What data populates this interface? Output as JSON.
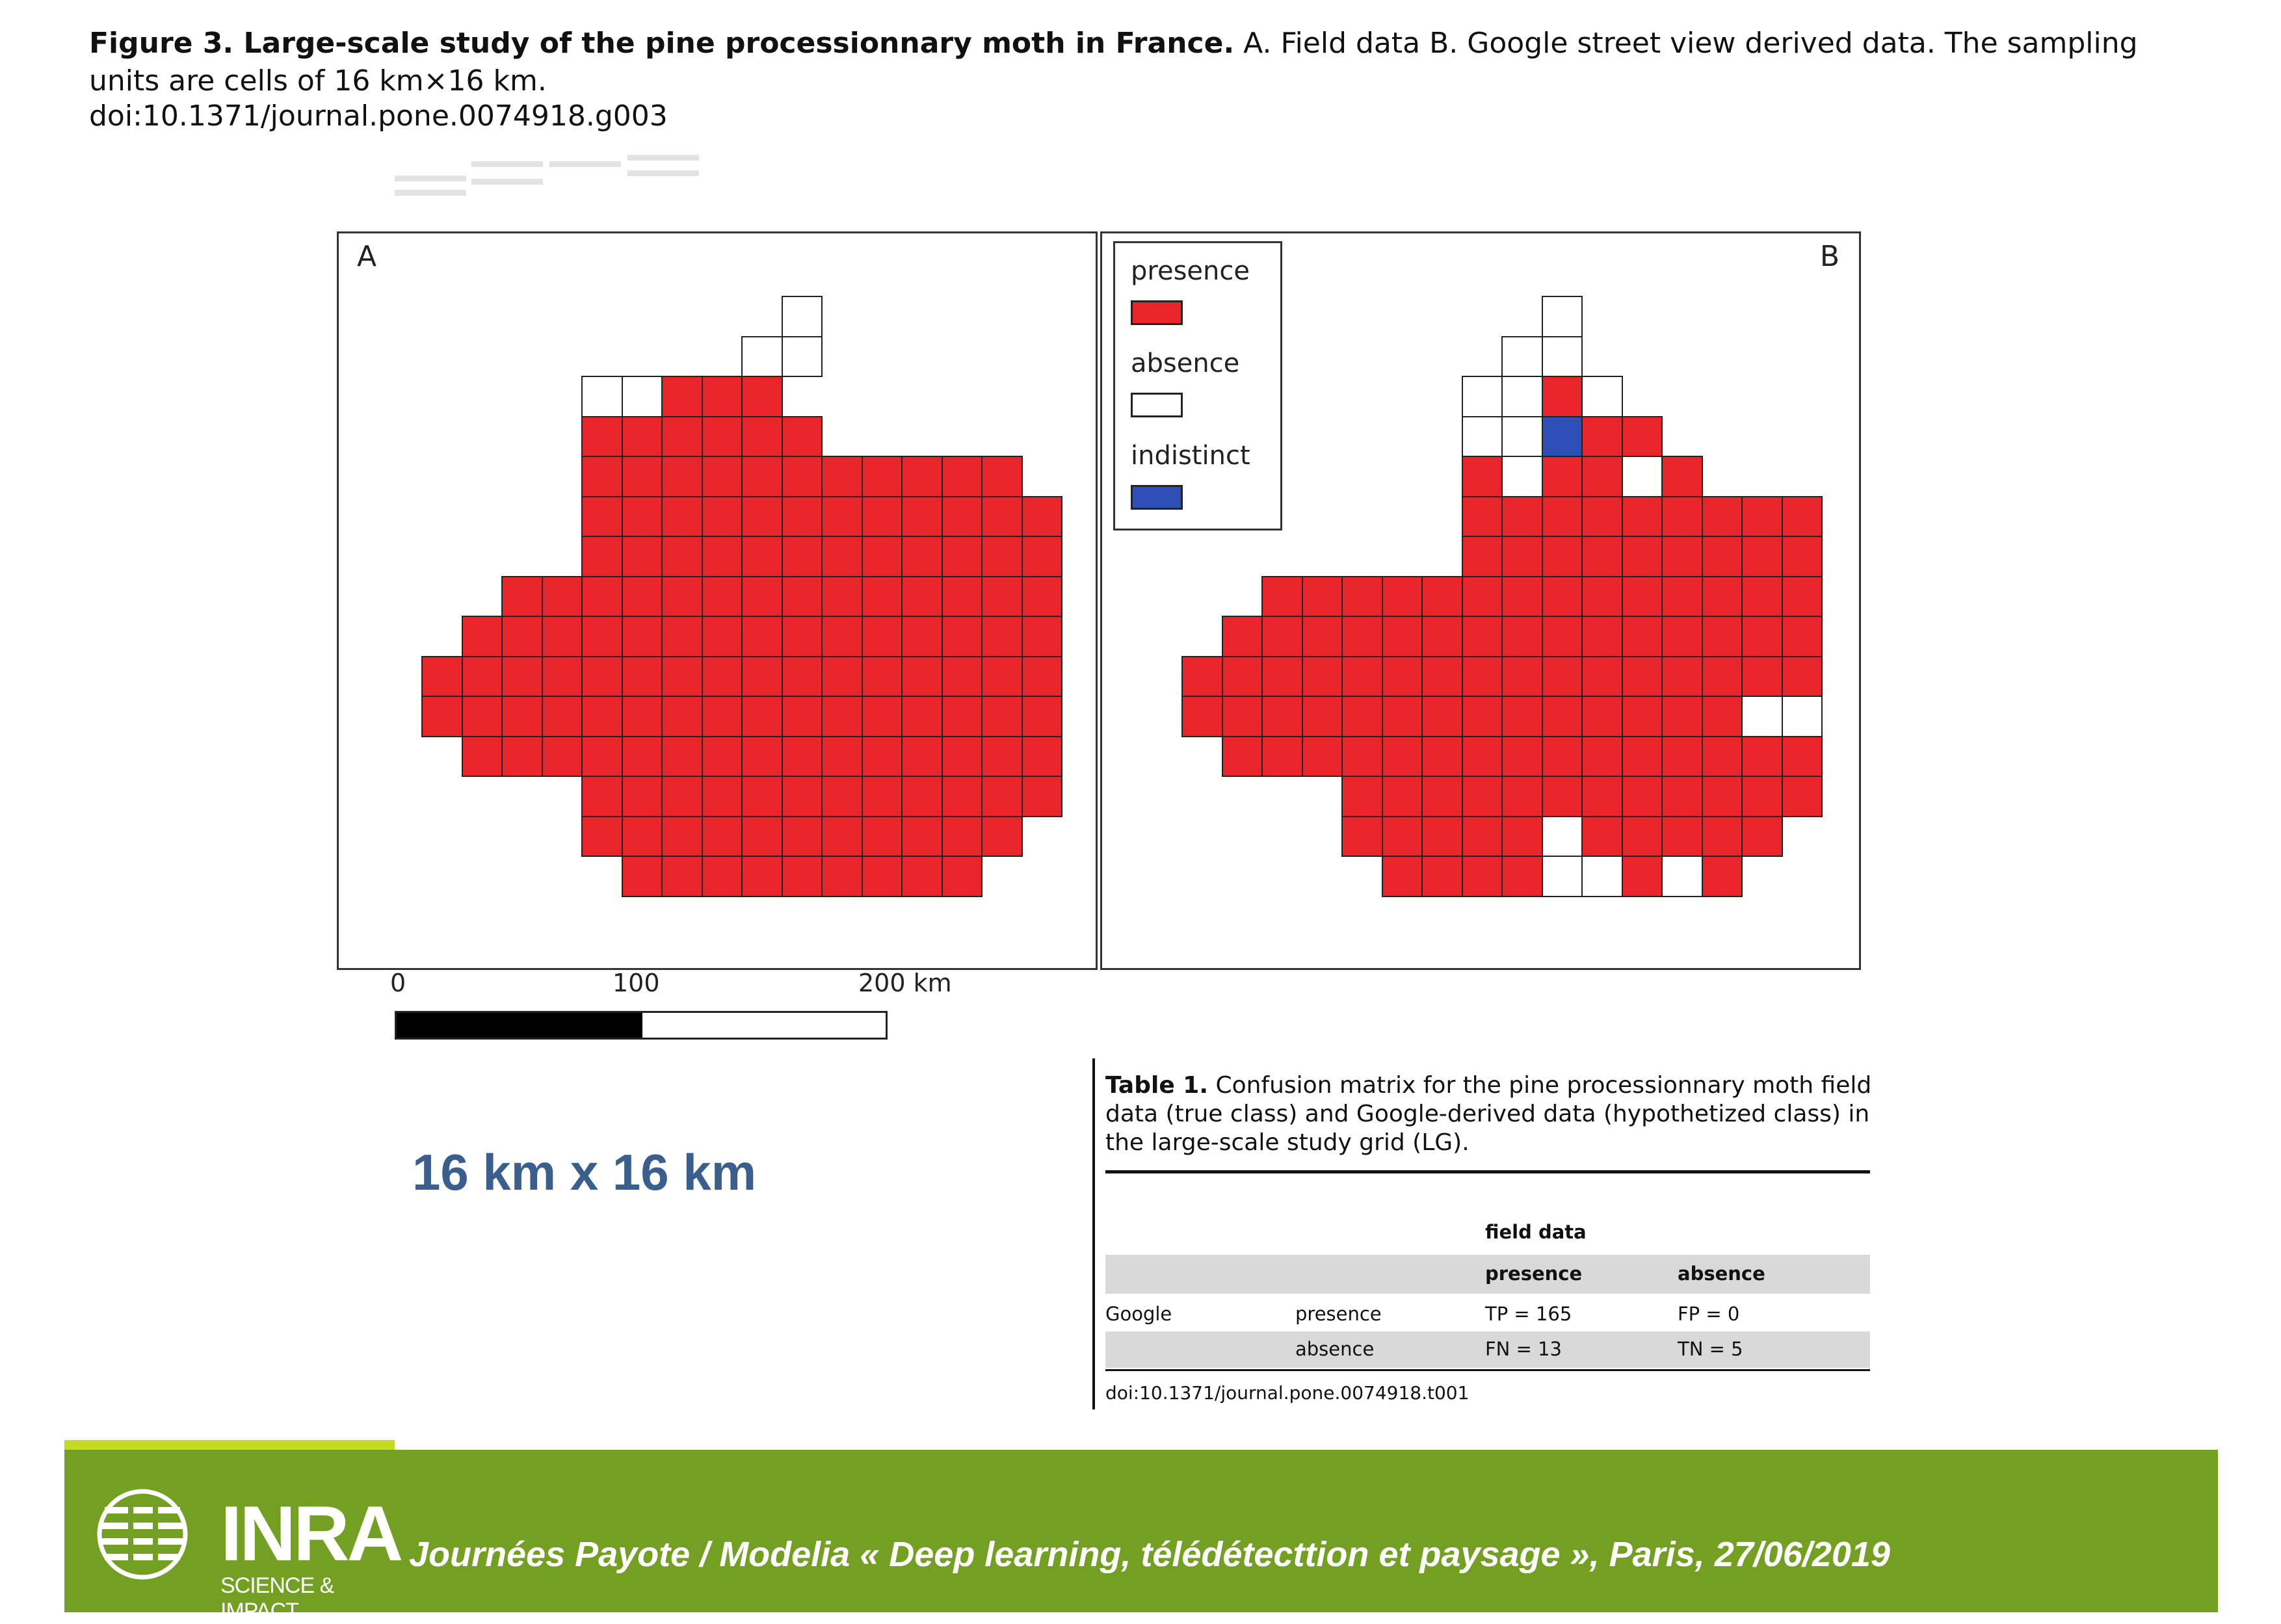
{
  "figure": {
    "caption_title": "Figure 3. Large-scale study of the pine processionnary moth in France.",
    "caption_rest": " A. Field data B. Google street view derived data. The sampling units are cells of 16 km×16 km.",
    "doi": "doi:10.1371/journal.pone.0074918.g003",
    "panel_a_label": "A",
    "panel_b_label": "B",
    "legend": {
      "presence": "presence",
      "absence": "absence",
      "indistinct": "indistinct",
      "colors": {
        "presence": "#e8252b",
        "absence": "#ffffff",
        "indistinct": "#2e4fb5"
      }
    },
    "scale": {
      "label_0": "0",
      "label_100": "100",
      "label_200": "200 km"
    }
  },
  "grid_note": "16 km x 16 km",
  "table": {
    "caption_title": "Table 1.",
    "caption_rest": " Confusion matrix for the pine processionnary moth field data (true class) and Google-derived data (hypothetized class) in the large-scale study grid (LG).",
    "header_group": "field data",
    "col_presence": "presence",
    "col_absence": "absence",
    "row_group": "Google",
    "row_presence": "presence",
    "row_absence": "absence",
    "tp": "TP = 165",
    "fp": "FP = 0",
    "fn": "FN = 13",
    "tn": "TN = 5",
    "doi": "doi:10.1371/journal.pone.0074918.t001"
  },
  "footer": {
    "logo_text": "INRA",
    "logo_sub": "SCIENCE & IMPACT",
    "event": "Journées Payote / Modelia « Deep learning, télédétecttion et paysage », Paris, 27/06/2019"
  },
  "maps": {
    "row_spans": [
      [
        [
          9,
          9
        ]
      ],
      [
        [
          8,
          9
        ]
      ],
      [
        [
          4,
          8
        ]
      ],
      [
        [
          4,
          9
        ]
      ],
      [
        [
          4,
          14
        ]
      ],
      [
        [
          4,
          15
        ]
      ],
      [
        [
          4,
          15
        ]
      ],
      [
        [
          2,
          15
        ]
      ],
      [
        [
          1,
          15
        ]
      ],
      [
        [
          0,
          15
        ]
      ],
      [
        [
          0,
          15
        ]
      ],
      [
        [
          1,
          15
        ]
      ],
      [
        [
          4,
          15
        ]
      ],
      [
        [
          4,
          14
        ]
      ],
      [
        [
          5,
          13
        ]
      ]
    ],
    "a_absence": [
      [
        0,
        9
      ],
      [
        1,
        8
      ],
      [
        1,
        9
      ],
      [
        2,
        4
      ],
      [
        2,
        5
      ]
    ],
    "b_row_spans": [
      [
        [
          9,
          9
        ]
      ],
      [
        [
          8,
          9
        ]
      ],
      [
        [
          7,
          10
        ]
      ],
      [
        [
          7,
          11
        ]
      ],
      [
        [
          7,
          12
        ]
      ],
      [
        [
          7,
          15
        ]
      ],
      [
        [
          7,
          15
        ]
      ],
      [
        [
          2,
          15
        ]
      ],
      [
        [
          1,
          15
        ]
      ],
      [
        [
          0,
          15
        ]
      ],
      [
        [
          0,
          15
        ]
      ],
      [
        [
          1,
          15
        ]
      ],
      [
        [
          4,
          15
        ]
      ],
      [
        [
          4,
          14
        ]
      ],
      [
        [
          5,
          13
        ]
      ]
    ],
    "b_absence": [
      [
        0,
        9
      ],
      [
        1,
        8
      ],
      [
        1,
        9
      ],
      [
        2,
        7
      ],
      [
        2,
        8
      ],
      [
        2,
        10
      ],
      [
        3,
        7
      ],
      [
        3,
        8
      ],
      [
        4,
        8
      ],
      [
        4,
        11
      ],
      [
        10,
        14
      ],
      [
        10,
        15
      ],
      [
        13,
        9
      ],
      [
        14,
        9
      ],
      [
        14,
        10
      ],
      [
        14,
        12
      ]
    ],
    "b_indistinct": [
      [
        3,
        9
      ]
    ]
  }
}
